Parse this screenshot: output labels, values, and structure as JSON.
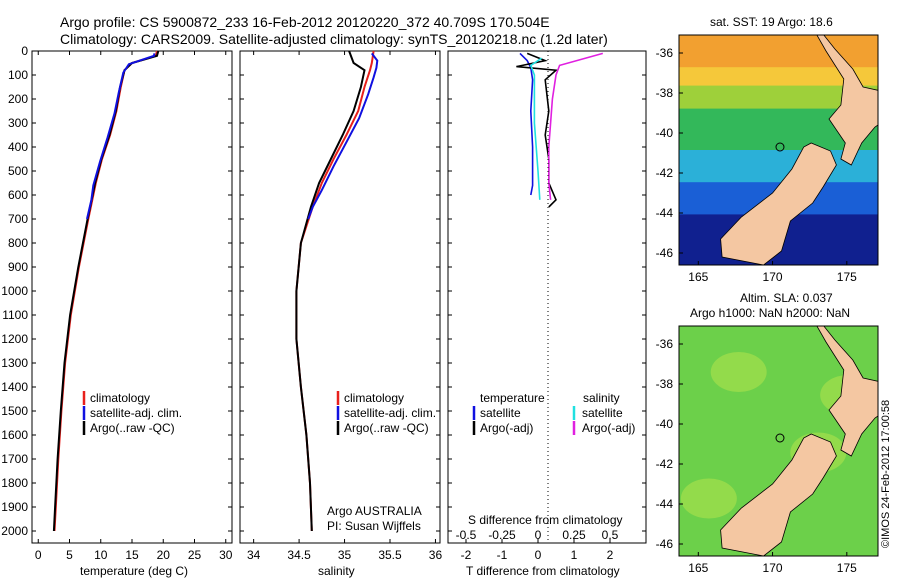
{
  "header": {
    "line1": "Argo profile: CS 5900872_233 16-Feb-2012 20120220_372 40.709S 170.504E",
    "line2": "Climatology: CARS2009. Satellite-adjusted climatology: synTS_20120218.nc (1.2d later)"
  },
  "legend_panel1": {
    "clim": "climatology",
    "sat": "satellite-adj. clim.",
    "argo": "Argo(..raw -QC)"
  },
  "legend_panel2": {
    "clim": "climatology",
    "sat": "satellite-adj. clim.",
    "argo": "Argo(..raw -QC)"
  },
  "legend_panel3": {
    "temp_head": "temperature",
    "sal_head": "salinity",
    "t_sat": "satellite",
    "t_argo": "Argo(-adj)",
    "s_sat": "satellite",
    "s_argo": "Argo(-adj)"
  },
  "credit": {
    "line1": "Argo AUSTRALIA",
    "line2": "PI: Susan Wijffels"
  },
  "maps": {
    "sst_title": "sat. SST: 19 Argo: 18.6",
    "sla_title1": "Altim. SLA: 0.037",
    "sla_title2": "Argo h1000: NaN h2000: NaN",
    "lat_ticks": [
      "-36",
      "-38",
      "-40",
      "-42",
      "-44",
      "-46"
    ],
    "lon_ticks": [
      "165",
      "170",
      "175"
    ]
  },
  "timestamp": "©IMOS 24-Feb-2012 17:00:58",
  "colors": {
    "climatology": "#e8201c",
    "satellite": "#1010e0",
    "argo": "#000000",
    "sal_satellite": "#20e0e0",
    "sal_argo": "#e020e0",
    "land": "#f4c7a2"
  },
  "chart_data": [
    {
      "type": "line",
      "xlabel": "temperature (deg C)",
      "ylim": [
        2050,
        0
      ],
      "xlim": [
        -1,
        31
      ],
      "x_ticks": [
        0,
        5,
        10,
        15,
        20,
        25,
        30
      ],
      "y_ticks": [
        0,
        100,
        200,
        300,
        400,
        500,
        600,
        700,
        800,
        900,
        1000,
        1100,
        1200,
        1300,
        1400,
        1500,
        1600,
        1700,
        1800,
        1900,
        2000
      ],
      "series": [
        {
          "name": "climatology",
          "points": [
            [
              19,
              0
            ],
            [
              18.8,
              20
            ],
            [
              15,
              50
            ],
            [
              13.8,
              80
            ],
            [
              13.2,
              150
            ],
            [
              12.5,
              250
            ],
            [
              11.5,
              350
            ],
            [
              10.2,
              450
            ],
            [
              9.2,
              550
            ],
            [
              8,
              700
            ],
            [
              6.5,
              900
            ],
            [
              5.2,
              1100
            ],
            [
              4.3,
              1300
            ],
            [
              3.7,
              1500
            ],
            [
              3.2,
              1700
            ],
            [
              2.8,
              1900
            ],
            [
              2.6,
              2000
            ]
          ]
        },
        {
          "name": "satellite-adj. clim.",
          "points": [
            [
              19.2,
              0
            ],
            [
              19,
              20
            ],
            [
              15,
              50
            ],
            [
              13.8,
              80
            ],
            [
              13.1,
              150
            ],
            [
              12.4,
              250
            ],
            [
              11.4,
              350
            ],
            [
              10.1,
              450
            ],
            [
              9.1,
              550
            ],
            [
              7.9,
              700
            ],
            [
              6.4,
              900
            ],
            [
              5.1,
              1100
            ],
            [
              4.2,
              1300
            ],
            [
              3.6,
              1500
            ],
            [
              3.1,
              1700
            ],
            [
              2.7,
              1900
            ],
            [
              2.5,
              2000
            ]
          ]
        },
        {
          "name": "Argo(..raw -QC)",
          "points": [
            [
              18.6,
              10
            ],
            [
              18.5,
              20
            ],
            [
              14.5,
              55
            ],
            [
              13.6,
              90
            ],
            [
              12.9,
              170
            ],
            [
              12.2,
              260
            ],
            [
              11.1,
              360
            ],
            [
              9.9,
              460
            ],
            [
              8.8,
              560
            ],
            [
              8.5,
              620
            ],
            [
              7.8,
              700
            ]
          ]
        }
      ]
    },
    {
      "type": "line",
      "xlabel": "salinity",
      "ylim": [
        2050,
        0
      ],
      "xlim": [
        33.85,
        36.05
      ],
      "x_ticks": [
        34,
        34.5,
        35,
        35.5,
        36
      ],
      "series": [
        {
          "name": "climatology",
          "points": [
            [
              35.32,
              0
            ],
            [
              35.3,
              50
            ],
            [
              35.28,
              80
            ],
            [
              35.22,
              150
            ],
            [
              35.15,
              250
            ],
            [
              35.02,
              350
            ],
            [
              34.88,
              450
            ],
            [
              34.75,
              550
            ],
            [
              34.65,
              650
            ],
            [
              34.52,
              800
            ],
            [
              34.47,
              1000
            ],
            [
              34.47,
              1200
            ],
            [
              34.52,
              1400
            ],
            [
              34.58,
              1600
            ],
            [
              34.62,
              1800
            ],
            [
              34.64,
              2000
            ]
          ]
        },
        {
          "name": "satellite-adj. clim.",
          "points": [
            [
              35.05,
              0
            ],
            [
              35.1,
              50
            ],
            [
              35.22,
              80
            ],
            [
              35.18,
              150
            ],
            [
              35.1,
              250
            ],
            [
              34.98,
              350
            ],
            [
              34.85,
              450
            ],
            [
              34.72,
              550
            ],
            [
              34.63,
              650
            ],
            [
              34.52,
              800
            ],
            [
              34.47,
              1000
            ],
            [
              34.47,
              1200
            ],
            [
              34.52,
              1400
            ],
            [
              34.58,
              1600
            ],
            [
              34.62,
              1800
            ],
            [
              34.64,
              2000
            ]
          ]
        },
        {
          "name": "Argo(..raw -QC)",
          "points": [
            [
              35.3,
              10
            ],
            [
              35.36,
              40
            ],
            [
              35.35,
              70
            ],
            [
              35.32,
              110
            ],
            [
              35.26,
              180
            ],
            [
              35.16,
              280
            ],
            [
              35.02,
              380
            ],
            [
              34.88,
              480
            ],
            [
              34.75,
              580
            ],
            [
              34.65,
              650
            ],
            [
              34.6,
              700
            ]
          ]
        }
      ]
    },
    {
      "type": "line",
      "title": "S difference from climatology",
      "xlabel": "T difference from climatology",
      "ylim": [
        2050,
        0
      ],
      "xlim": [
        -2.5,
        3
      ],
      "x_ticks_T": [
        -2,
        -1,
        0,
        1,
        2
      ],
      "x_ticks_S": [
        "-0.5",
        "-0.25",
        "0",
        "0.25",
        "0.5"
      ],
      "series": [
        {
          "name": "temperature satellite",
          "points": [
            [
              -0.5,
              10
            ],
            [
              -0.3,
              40
            ],
            [
              -0.2,
              70
            ],
            [
              -0.15,
              120
            ],
            [
              -0.2,
              250
            ],
            [
              -0.15,
              400
            ],
            [
              -0.15,
              560
            ],
            [
              -0.2,
              600
            ]
          ]
        },
        {
          "name": "temperature Argo(-adj)",
          "points": [
            [
              -0.3,
              10
            ],
            [
              0.2,
              40
            ],
            [
              -0.6,
              65
            ],
            [
              0.5,
              80
            ],
            [
              0.2,
              120
            ],
            [
              0.3,
              250
            ],
            [
              0.2,
              350
            ],
            [
              0.3,
              450
            ],
            [
              0.3,
              550
            ],
            [
              0.5,
              620
            ],
            [
              0.3,
              650
            ]
          ]
        },
        {
          "name": "salinity satellite",
          "points": [
            [
              0.1,
              30
            ],
            [
              -0.2,
              60
            ],
            [
              -0.1,
              100
            ],
            [
              -0.1,
              300
            ],
            [
              0,
              500
            ],
            [
              0.05,
              620
            ]
          ]
        },
        {
          "name": "salinity Argo(-adj)",
          "points": [
            [
              1.8,
              10
            ],
            [
              0.6,
              60
            ],
            [
              0.5,
              100
            ],
            [
              0.4,
              200
            ],
            [
              0.3,
              400
            ],
            [
              0.3,
              550
            ],
            [
              0.35,
              620
            ]
          ]
        }
      ]
    }
  ]
}
